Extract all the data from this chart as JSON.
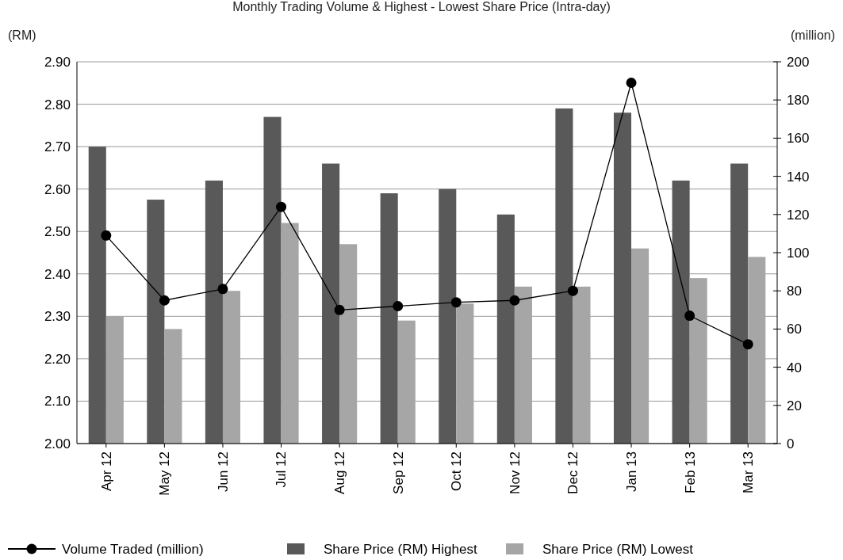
{
  "chart_data": {
    "type": "bar",
    "title": "Monthly Trading Volume & Highest - Lowest Share Price (Intra-day)",
    "ylabel": "(RM)",
    "y2label": "(million)",
    "categories": [
      "Apr 12",
      "May 12",
      "Jun 12",
      "Jul 12",
      "Aug 12",
      "Sep 12",
      "Oct 12",
      "Nov 12",
      "Dec 12",
      "Jan 13",
      "Feb 13",
      "Mar 13"
    ],
    "series": [
      {
        "name": "Volume Traded (million)",
        "type": "line",
        "axis": "y2",
        "color": "#000000",
        "marker": "circle",
        "values": [
          109,
          75,
          81,
          124,
          70,
          72,
          74,
          75,
          80,
          189,
          67,
          52
        ]
      },
      {
        "name": "Share Price (RM) Highest",
        "color": "#595959",
        "values": [
          2.7,
          2.575,
          2.62,
          2.77,
          2.66,
          2.59,
          2.6,
          2.54,
          2.79,
          2.78,
          2.62,
          2.66
        ]
      },
      {
        "name": "Share Price (RM) Lowest",
        "color": "#a6a6a6",
        "values": [
          2.3,
          2.27,
          2.36,
          2.52,
          2.47,
          2.29,
          2.33,
          2.37,
          2.37,
          2.46,
          2.39,
          2.44
        ]
      }
    ],
    "ylim": [
      2.0,
      2.9
    ],
    "yticks": [
      {
        "value": 2.0,
        "label": "2.00"
      },
      {
        "value": 2.1,
        "label": "2.10"
      },
      {
        "value": 2.2,
        "label": "2.20"
      },
      {
        "value": 2.3,
        "label": "2.30"
      },
      {
        "value": 2.4,
        "label": "2.40"
      },
      {
        "value": 2.5,
        "label": "2.50"
      },
      {
        "value": 2.6,
        "label": "2.60"
      },
      {
        "value": 2.7,
        "label": "2.70"
      },
      {
        "value": 2.8,
        "label": "2.80"
      },
      {
        "value": 2.9,
        "label": "2.90"
      }
    ],
    "y2lim": [
      0,
      200
    ],
    "y2ticks": [
      0,
      20,
      40,
      60,
      80,
      100,
      120,
      140,
      160,
      180,
      200
    ],
    "grid": "y",
    "legend": "bottom"
  }
}
